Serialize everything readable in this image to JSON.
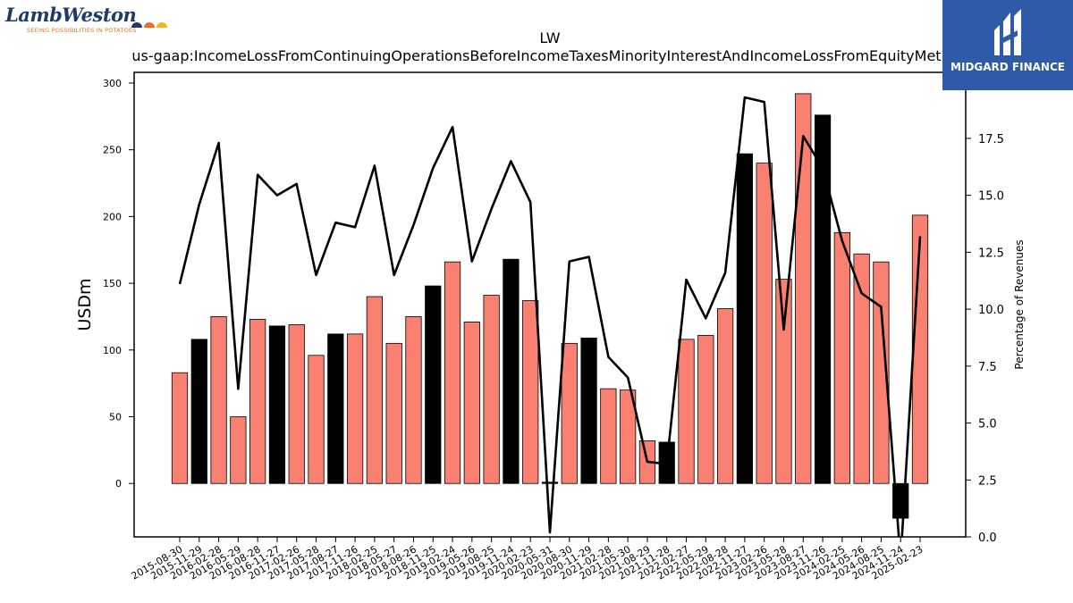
{
  "branding": {
    "left_logo_text": "LambWeston",
    "left_logo_tagline": "SEEING POSSIBILITIES IN POTATOES",
    "right_logo_text": "MIDGARD FINANCE",
    "colors": {
      "lamb_blue": "#1f3b6e",
      "lamb_orange": "#e8711f",
      "midgard_blue": "#2e5aa8"
    }
  },
  "chart_data": {
    "type": "bar",
    "title": "LW",
    "subtitle": "us-gaap:IncomeLossFromContinuingOperationsBeforeIncomeTaxesMinorityInterestAndIncomeLossFromEquityMethod",
    "ylabel": "USDm",
    "y2label": "Percentage of Revenues",
    "ylim": [
      -40,
      308
    ],
    "y2lim": [
      0,
      20.4
    ],
    "yticks": [
      0,
      50,
      100,
      150,
      200,
      250,
      300
    ],
    "y2ticks": [
      "0.0",
      "2.5",
      "5.0",
      "7.5",
      "10.0",
      "12.5",
      "15.0",
      "17.5"
    ],
    "categories": [
      "2015-08-30",
      "2015-11-29",
      "2016-02-28",
      "2016-05-29",
      "2016-08-28",
      "2016-11-27",
      "2017-02-26",
      "2017-05-28",
      "2017-08-27",
      "2017-11-26",
      "2018-02-25",
      "2018-05-27",
      "2018-08-26",
      "2018-11-25",
      "2019-02-24",
      "2019-05-26",
      "2019-08-25",
      "2019-11-24",
      "2020-02-23",
      "2020-05-31",
      "2020-08-30",
      "2020-11-29",
      "2021-02-28",
      "2021-05-30",
      "2021-08-29",
      "2021-11-28",
      "2022-02-27",
      "2022-05-29",
      "2022-08-28",
      "2022-11-27",
      "2023-02-26",
      "2023-05-28",
      "2023-08-27",
      "2023-11-26",
      "2024-02-25",
      "2024-05-26",
      "2024-08-25",
      "2024-11-24",
      "2025-02-23"
    ],
    "series": [
      {
        "kind": "bar",
        "values": [
          83,
          108,
          125,
          50,
          123,
          118,
          119,
          96,
          112,
          112,
          140,
          105,
          125,
          148,
          166,
          121,
          141,
          168,
          137,
          1,
          105,
          109,
          71,
          70,
          32,
          31,
          108,
          111,
          131,
          247,
          240,
          153,
          292,
          276,
          188,
          172,
          166,
          -26,
          201
        ],
        "highlight": [
          false,
          true,
          false,
          false,
          false,
          true,
          false,
          false,
          true,
          false,
          false,
          false,
          false,
          true,
          false,
          false,
          false,
          true,
          false,
          true,
          false,
          true,
          false,
          false,
          false,
          true,
          false,
          false,
          false,
          true,
          false,
          false,
          false,
          true,
          false,
          false,
          false,
          true,
          false
        ]
      },
      {
        "kind": "line",
        "axis": "right",
        "values": [
          11.1,
          14.6,
          17.3,
          6.5,
          15.9,
          15.0,
          15.5,
          11.5,
          13.8,
          13.6,
          16.3,
          11.5,
          13.7,
          16.2,
          18.0,
          12.1,
          14.4,
          16.5,
          14.7,
          0.2,
          12.1,
          12.3,
          7.9,
          7.0,
          3.3,
          3.2,
          11.3,
          9.6,
          11.6,
          19.3,
          19.1,
          9.1,
          17.6,
          16.2,
          13.0,
          10.7,
          10.1,
          -1.0,
          13.2
        ]
      }
    ],
    "colors": {
      "bar": "#fa8072",
      "bar_highlight": "#000000",
      "line": "#000000"
    }
  }
}
